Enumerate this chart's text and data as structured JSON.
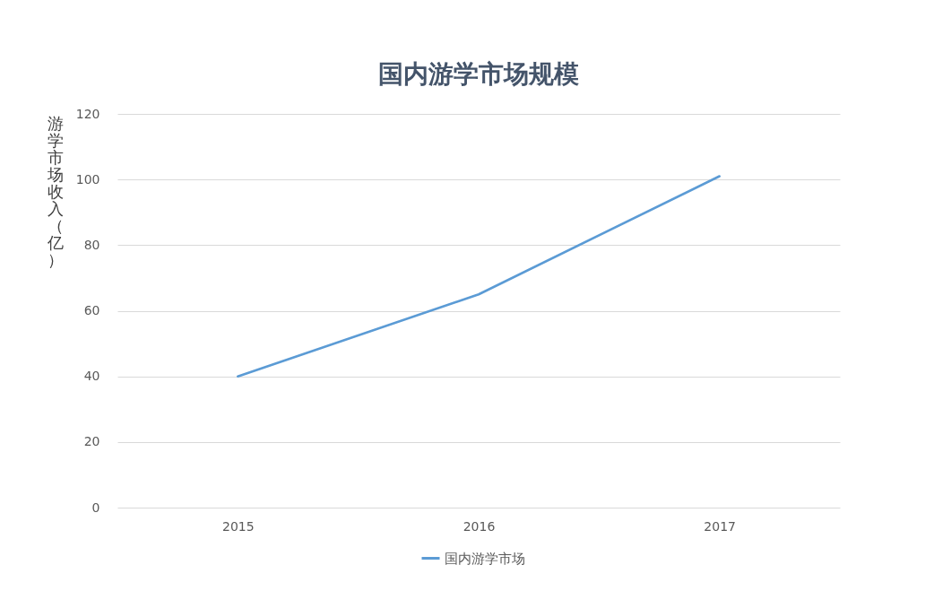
{
  "chart_data": {
    "type": "line",
    "title": "国内游学市场规模",
    "ylabel": "游学市场收入（亿）",
    "categories": [
      "2015",
      "2016",
      "2017"
    ],
    "series": [
      {
        "name": "国内游学市场",
        "color": "#5b9bd5",
        "values": [
          40,
          65,
          101
        ]
      }
    ],
    "ylim": [
      0,
      120
    ],
    "yticks": [
      0,
      20,
      40,
      60,
      80,
      100,
      120
    ],
    "grid": "y",
    "legend": "bottom"
  }
}
